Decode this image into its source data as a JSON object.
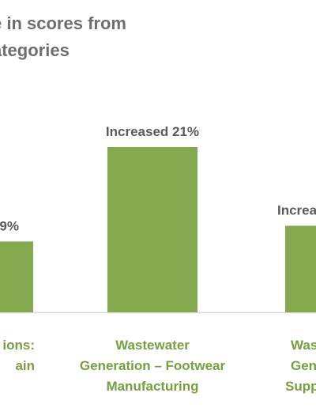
{
  "colors": {
    "bar": "#84a94e",
    "category_text": "#76a03f",
    "title_text": "#6d6e71",
    "value_text": "#5a5a5a",
    "axis": "#d9d9d9"
  },
  "chart_data": {
    "type": "bar",
    "title_lines": [
      "e in scores from",
      "ategories"
    ],
    "categories": [
      [
        "ions:",
        "ain"
      ],
      [
        "Wastewater",
        "Generation – Footwear",
        "Manufacturing"
      ],
      [
        "Was",
        "Gen",
        "Supp"
      ]
    ],
    "values": [
      9,
      21,
      11
    ],
    "data_labels": [
      "9%",
      "Increased 21%",
      "Increa"
    ],
    "ylim": [
      0,
      21
    ]
  }
}
